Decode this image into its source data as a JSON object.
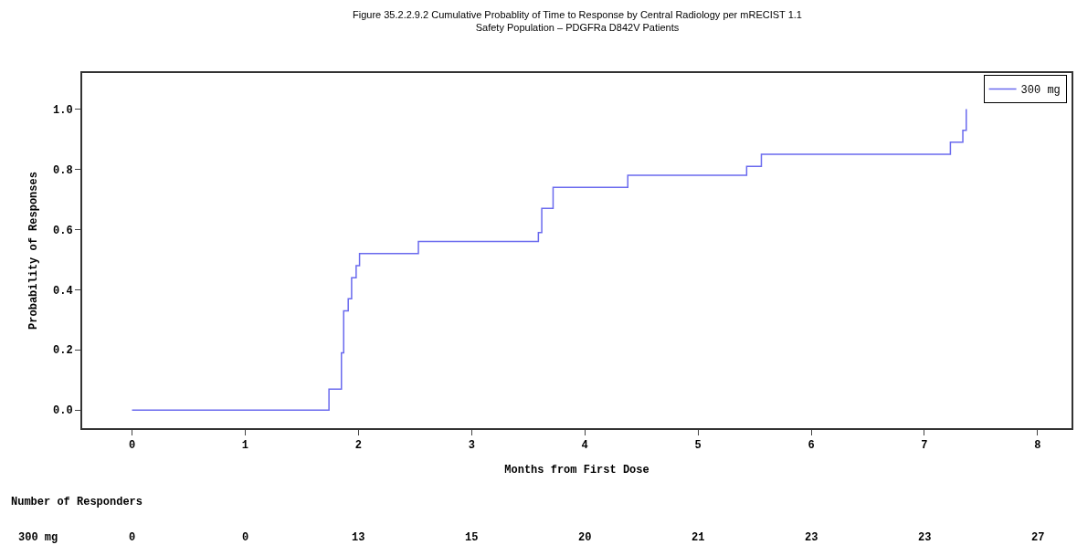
{
  "chart_data": {
    "type": "step",
    "title": "Figure 35.2.2.9.2 Cumulative Probablity of Time to Response by Central Radiology per mRECIST 1.1",
    "subtitle": "Safety Population – PDGFRa D842V Patients",
    "xlabel": "Months from First Dose",
    "ylabel": "Probability of Responses",
    "series": [
      {
        "name": "300 mg",
        "color": "#6a6aee",
        "x": [
          0,
          1.74,
          1.85,
          1.87,
          1.91,
          1.94,
          1.98,
          2.01,
          2.53,
          3.59,
          3.62,
          3.72,
          4.38,
          5.43,
          5.56,
          7.23,
          7.34,
          7.37
        ],
        "values": [
          0,
          0.07,
          0.19,
          0.33,
          0.37,
          0.44,
          0.48,
          0.52,
          0.56,
          0.59,
          0.67,
          0.74,
          0.78,
          0.81,
          0.85,
          0.89,
          0.93,
          1.0
        ]
      }
    ],
    "xlim": [
      -0.44,
      8.3
    ],
    "ylim": [
      -0.06,
      1.12
    ],
    "xticks": [
      0,
      1,
      2,
      3,
      4,
      5,
      6,
      7,
      8
    ],
    "yticks": [
      {
        "value": 0,
        "label": "0.0"
      },
      {
        "value": 0.2,
        "label": "0.2"
      },
      {
        "value": 0.4,
        "label": "0.4"
      },
      {
        "value": 0.6,
        "label": "0.6"
      },
      {
        "value": 0.8,
        "label": "0.8"
      },
      {
        "value": 1.0,
        "label": "1.0"
      }
    ],
    "annotations": [
      "Number of Responders",
      "300 mg",
      "0",
      "0",
      "13",
      "15",
      "20",
      "21",
      "23",
      "23",
      "27"
    ],
    "legend": "top right",
    "marker": "none",
    "line_style": "solid"
  }
}
